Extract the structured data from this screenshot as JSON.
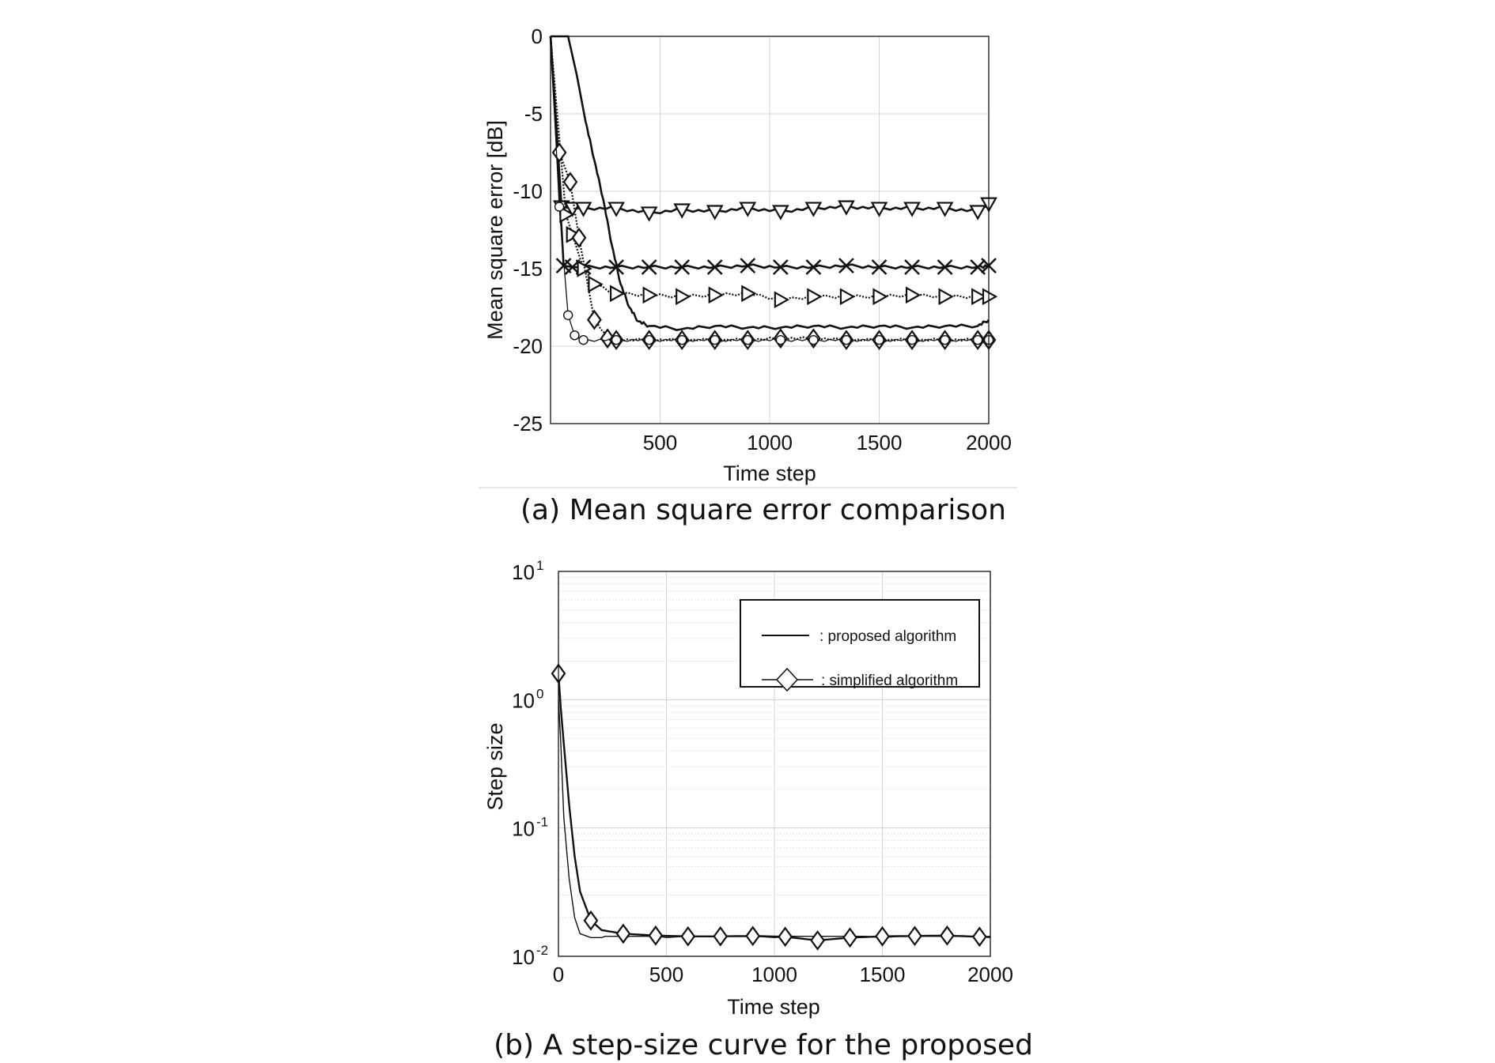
{
  "chart_data": [
    {
      "type": "line",
      "caption": "(a) Mean square error comparison",
      "xlabel": "Time step",
      "ylabel": "Mean square error [dB]",
      "xlim": [
        0,
        2000
      ],
      "ylim": [
        -25,
        0
      ],
      "xticks": [
        "500",
        "1000",
        "1500",
        "2000"
      ],
      "yticks": [
        "0",
        "-5",
        "-10",
        "-15",
        "-20",
        "-25"
      ],
      "grid": true,
      "series": [
        {
          "marker": "down-triangle",
          "style": "solid-thick",
          "x": [
            0,
            50,
            100,
            150,
            300,
            450,
            600,
            750,
            900,
            1050,
            1200,
            1350,
            1500,
            1650,
            1800,
            1950,
            2000
          ],
          "y": [
            0,
            -11,
            -11.1,
            -11.1,
            -11.1,
            -11.4,
            -11.2,
            -11.3,
            -11.1,
            -11.3,
            -11.1,
            -11.0,
            -11.1,
            -11.1,
            -11.1,
            -11.3,
            -10.8
          ]
        },
        {
          "marker": "x",
          "style": "solid-thick",
          "x": [
            0,
            60,
            100,
            150,
            300,
            450,
            600,
            750,
            900,
            1050,
            1200,
            1350,
            1500,
            1650,
            1800,
            1950,
            2000
          ],
          "y": [
            0,
            -14.8,
            -14.9,
            -14.9,
            -14.9,
            -14.9,
            -14.9,
            -14.9,
            -14.8,
            -14.9,
            -14.9,
            -14.8,
            -14.9,
            -14.9,
            -14.9,
            -14.9,
            -14.8
          ]
        },
        {
          "marker": "right-triangle",
          "style": "dotted",
          "x": [
            0,
            70,
            100,
            150,
            200,
            300,
            450,
            600,
            750,
            900,
            1050,
            1200,
            1350,
            1500,
            1650,
            1800,
            1950,
            2000
          ],
          "y": [
            0,
            -11.5,
            -12.8,
            -15,
            -16,
            -16.6,
            -16.7,
            -16.8,
            -16.7,
            -16.6,
            -17.0,
            -16.8,
            -16.8,
            -16.8,
            -16.7,
            -16.8,
            -16.8,
            -16.8
          ]
        },
        {
          "marker": "none",
          "style": "solid-thick",
          "x": [
            0,
            80,
            120,
            160,
            200,
            240,
            280,
            320,
            360,
            400,
            450,
            600,
            750,
            900,
            1050,
            1200,
            1350,
            1500,
            1650,
            1800,
            1950,
            2000
          ],
          "y": [
            1.5,
            0,
            -2.5,
            -5.5,
            -8,
            -10.5,
            -13.5,
            -16,
            -17.5,
            -18.4,
            -18.7,
            -18.9,
            -18.7,
            -18.8,
            -18.8,
            -18.7,
            -18.8,
            -18.7,
            -18.8,
            -18.7,
            -18.7,
            -18.3
          ]
        },
        {
          "marker": "diamond",
          "style": "dotted",
          "x": [
            0,
            40,
            90,
            130,
            200,
            260,
            300,
            450,
            600,
            750,
            900,
            1050,
            1200,
            1350,
            1500,
            1650,
            1800,
            1950,
            2000
          ],
          "y": [
            0,
            -7.5,
            -9.4,
            -13,
            -18.3,
            -19.5,
            -19.6,
            -19.6,
            -19.6,
            -19.6,
            -19.6,
            -19.5,
            -19.5,
            -19.6,
            -19.6,
            -19.6,
            -19.6,
            -19.6,
            -19.6
          ]
        },
        {
          "marker": "circle",
          "style": "solid-thin",
          "x": [
            0,
            40,
            80,
            110,
            150,
            300,
            450,
            600,
            750,
            900,
            1050,
            1200,
            1350,
            1500,
            1650,
            1800,
            1950,
            2000
          ],
          "y": [
            0,
            -11,
            -18,
            -19.3,
            -19.6,
            -19.6,
            -19.6,
            -19.6,
            -19.6,
            -19.6,
            -19.6,
            -19.6,
            -19.6,
            -19.6,
            -19.6,
            -19.6,
            -19.6,
            -19.6
          ]
        }
      ]
    },
    {
      "type": "line",
      "caption": "(b) A step-size curve for the proposed",
      "xlabel": "Time step",
      "ylabel": "Step size",
      "xlim": [
        0,
        2000
      ],
      "ylim": [
        0.01,
        10
      ],
      "yscale": "log",
      "xticks": [
        "0",
        "500",
        "1000",
        "1500",
        "2000"
      ],
      "yticks": [
        {
          "base": "10",
          "exp": "1"
        },
        {
          "base": "10",
          "exp": "0"
        },
        {
          "base": "10",
          "exp": "-1"
        },
        {
          "base": "10",
          "exp": "-2"
        }
      ],
      "grid": true,
      "legend": {
        "position": "top-right",
        "entries": [
          ": proposed algorithm",
          ": simplified algorithm"
        ]
      },
      "series": [
        {
          "name": ": proposed algorithm",
          "marker": "none",
          "x": [
            0,
            10,
            25,
            50,
            75,
            100,
            150,
            200,
            300,
            500,
            1000,
            1500,
            2000
          ],
          "y": [
            1.0,
            0.5,
            0.12,
            0.04,
            0.02,
            0.015,
            0.014,
            0.014,
            0.014,
            0.014,
            0.014,
            0.014,
            0.014
          ]
        },
        {
          "name": ": simplified algorithm",
          "marker": "diamond",
          "x": [
            0,
            10,
            25,
            50,
            75,
            100,
            150,
            200,
            300,
            450,
            600,
            750,
            900,
            1050,
            1200,
            1350,
            1500,
            1650,
            1800,
            1950,
            2000
          ],
          "y": [
            1.6,
            0.9,
            0.45,
            0.15,
            0.06,
            0.032,
            0.019,
            0.016,
            0.015,
            0.0145,
            0.0143,
            0.0143,
            0.0144,
            0.0142,
            0.0133,
            0.014,
            0.0143,
            0.0144,
            0.0145,
            0.0142,
            0.0142
          ]
        }
      ]
    }
  ]
}
